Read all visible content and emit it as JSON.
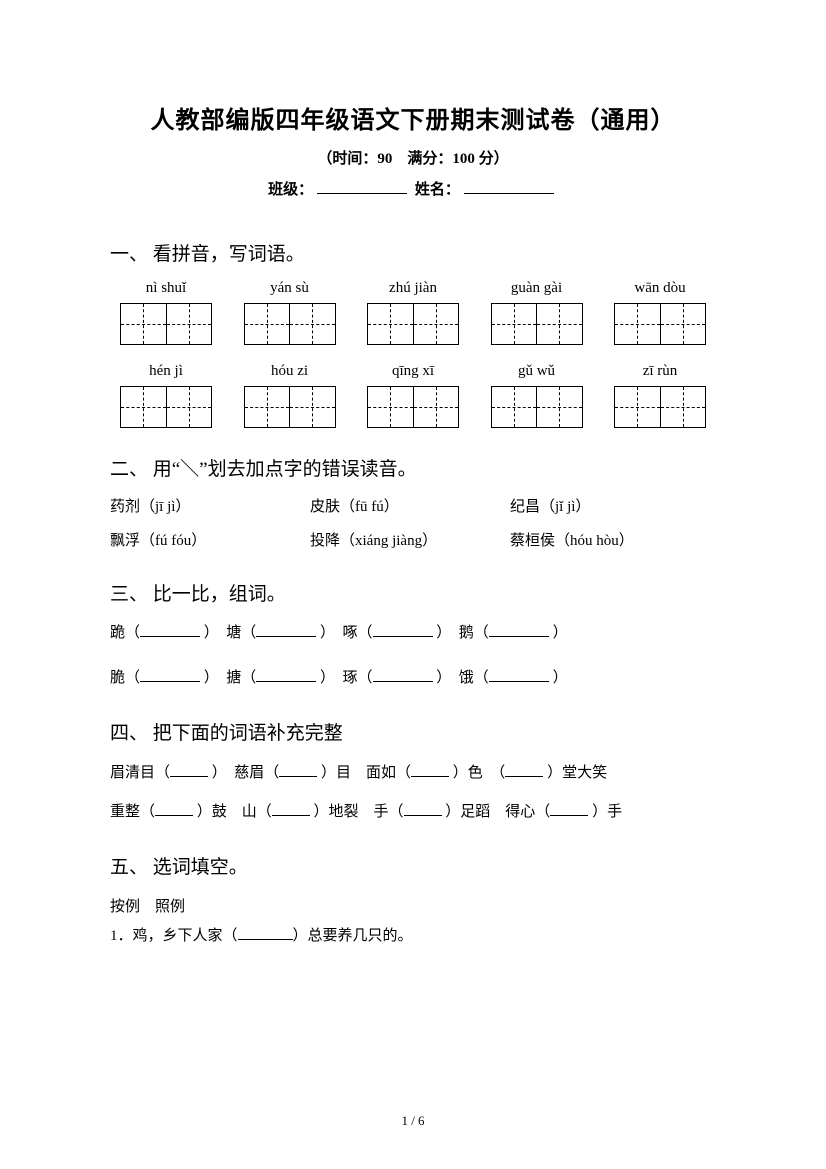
{
  "header": {
    "title": "人教部编版四年级语文下册期末测试卷（通用）",
    "subtitle": "（时间：90　满分：100 分）",
    "class_label": "班级：",
    "name_label": "姓名："
  },
  "q1": {
    "title": "一、 看拼音，写词语。",
    "row1": [
      "nì shuǐ",
      "yán sù",
      "zhú jiàn",
      "guàn gài",
      "wān dòu"
    ],
    "row2": [
      "hén jì",
      "hóu zi",
      "qīng xī",
      "gǔ wǔ",
      "zī rùn"
    ]
  },
  "q2": {
    "title": "二、 用“＼”划去加点字的错误读音。",
    "r1a": "药剂",
    "r1a_p": "（jī jì）",
    "r1b": "皮肤",
    "r1b_p": "（fū fú）",
    "r1c": "纪昌",
    "r1c_p": "（jǐ jì）",
    "r2a": "飘浮",
    "r2a_p": "（fú fóu）",
    "r2b": "投降",
    "r2b_p": "（xiáng jiàng）",
    "r2c": "蔡桓侯",
    "r2c_p": "（hóu hòu）"
  },
  "q3": {
    "title": "三、 比一比，组词。",
    "r1": [
      "跪（",
      "）　塘（",
      "）　啄（",
      "）　鹅（",
      "）"
    ],
    "r2": [
      "脆（",
      "）　搪（",
      "）　琢（",
      "）　饿（",
      "）"
    ]
  },
  "q4": {
    "title": "四、 把下面的词语补充完整",
    "line1": [
      "眉清目（",
      "）　慈眉（",
      "）目　面如（",
      "）色　（",
      "）堂大笑"
    ],
    "line2": [
      "重整（",
      "）鼓　山（",
      "）地裂　手（",
      "）足蹈　得心（",
      "）手"
    ]
  },
  "q5": {
    "title": "五、 选词填空。",
    "options": "按例　照例",
    "item1_pre": "1．鸡，乡下人家（",
    "item1_post": "）总要养几只的。"
  },
  "page_num": "1 / 6"
}
